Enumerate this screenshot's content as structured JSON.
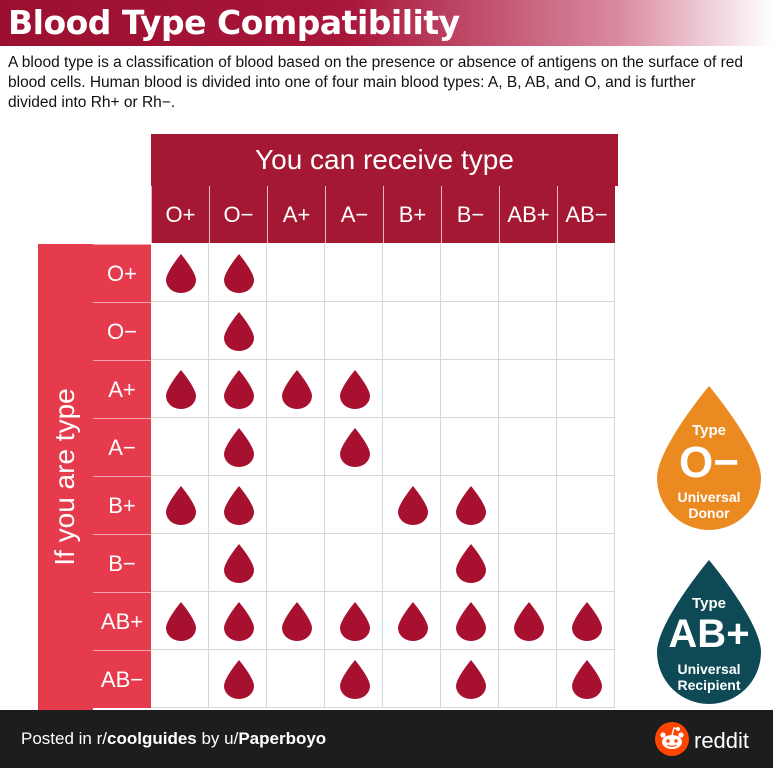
{
  "title": "Blood Type Compatibility",
  "intro": "A blood type is a classification of blood based on the presence or absence of antigens on the surface of red blood cells. Human blood is divided into one of four main blood types: A, B, AB, and O, and is further divided into Rh+ or Rh−.",
  "receive_header": "You can receive type",
  "row_header": "If you are type",
  "types": [
    "O+",
    "O−",
    "A+",
    "A−",
    "B+",
    "B−",
    "AB+",
    "AB−"
  ],
  "compatibility": [
    [
      1,
      1,
      0,
      0,
      0,
      0,
      0,
      0
    ],
    [
      0,
      1,
      0,
      0,
      0,
      0,
      0,
      0
    ],
    [
      1,
      1,
      1,
      1,
      0,
      0,
      0,
      0
    ],
    [
      0,
      1,
      0,
      1,
      0,
      0,
      0,
      0
    ],
    [
      1,
      1,
      0,
      0,
      1,
      1,
      0,
      0
    ],
    [
      0,
      1,
      0,
      0,
      0,
      1,
      0,
      0
    ],
    [
      1,
      1,
      1,
      1,
      1,
      1,
      1,
      1
    ],
    [
      0,
      1,
      0,
      1,
      0,
      1,
      0,
      1
    ]
  ],
  "donor_badge": {
    "top": "Type",
    "type": "O−",
    "label_1": "Universal",
    "label_2": "Donor",
    "color": "#ec8a22"
  },
  "recipient_badge": {
    "top": "Type",
    "type": "AB+",
    "label_1": "Universal",
    "label_2": "Recipient",
    "color": "#0d4a55"
  },
  "colors": {
    "drop": "#a8102f",
    "header": "#a51834",
    "row_header": "#e63a4d"
  },
  "footer": {
    "prefix": "Posted in r/",
    "subreddit": "coolguides",
    "by": " by u/",
    "user": "Paperboyo",
    "brand": "reddit"
  }
}
